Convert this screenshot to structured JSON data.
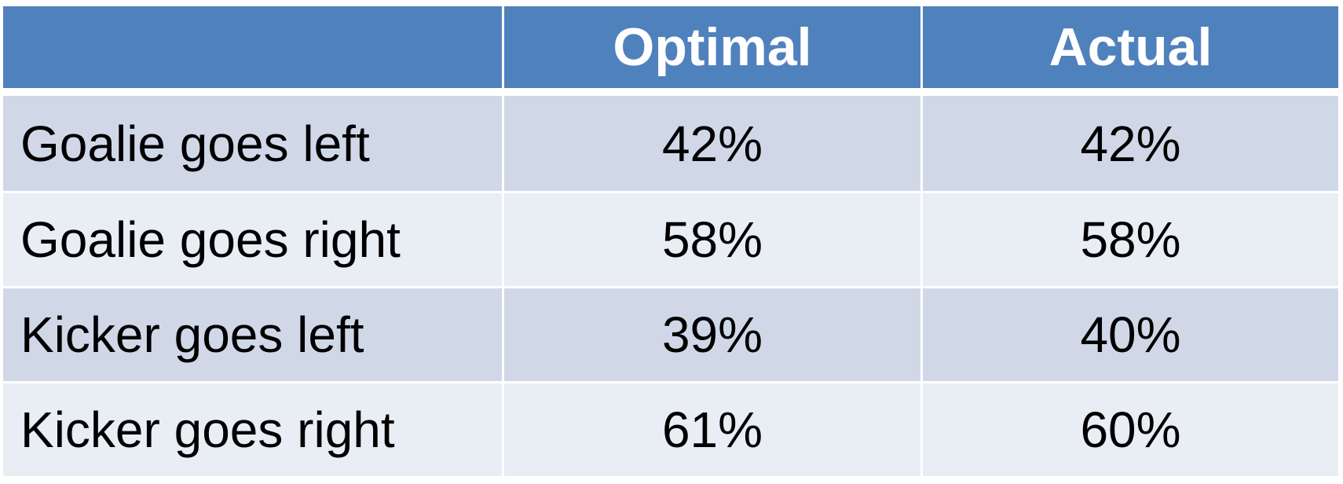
{
  "table": {
    "headers": [
      "",
      "Optimal",
      "Actual"
    ],
    "rows": [
      {
        "label": "Goalie goes left",
        "optimal": "42%",
        "actual": "42%"
      },
      {
        "label": "Goalie goes right",
        "optimal": "58%",
        "actual": "58%"
      },
      {
        "label": "Kicker goes left",
        "optimal": "39%",
        "actual": "40%"
      },
      {
        "label": "Kicker goes right",
        "optimal": "61%",
        "actual": "60%"
      }
    ]
  },
  "colors": {
    "header_bg": "#4f81bd",
    "header_text": "#ffffff",
    "row_odd_bg": "#d0d8e8",
    "row_even_bg": "#e9edf4",
    "cell_text": "#000000"
  }
}
